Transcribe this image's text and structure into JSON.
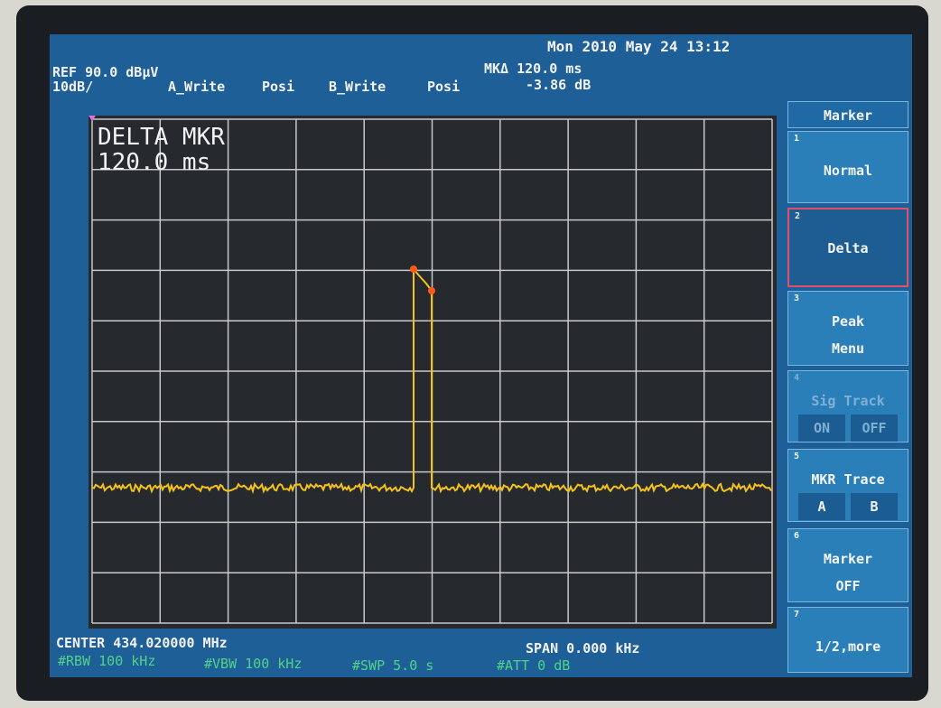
{
  "header": {
    "datetime": "Mon 2010 May 24 13:12",
    "ref": "REF 90.0 dBµV",
    "scale": "10dB/",
    "trace_a": "A_Write",
    "trace_a_mode": "Posi",
    "trace_b": "B_Write",
    "trace_b_mode": "Posi",
    "marker_delta": "MKΔ 120.0 ms",
    "marker_level": "-3.86 dB"
  },
  "display": {
    "marker_title": "DELTA MKR",
    "marker_value": "120.0 ms"
  },
  "footer": {
    "center": "CENTER 434.020000 MHz",
    "span": "SPAN 0.000 kHz",
    "rbw": "#RBW 100 kHz",
    "vbw": "#VBW 100 kHz",
    "swp": "#SWP 5.0 s",
    "att": "#ATT 0 dB"
  },
  "softkeys": {
    "title": "Marker",
    "keys": [
      {
        "number": "1",
        "lines": [
          "Normal"
        ]
      },
      {
        "number": "2",
        "lines": [
          "Delta"
        ]
      },
      {
        "number": "3",
        "lines": [
          "Peak",
          "Menu"
        ]
      },
      {
        "number": "4",
        "lines": [
          "Sig Track"
        ],
        "options": [
          "ON",
          "OFF"
        ]
      },
      {
        "number": "5",
        "lines": [
          "MKR Trace"
        ],
        "options": [
          "A",
          "B"
        ]
      },
      {
        "number": "6",
        "lines": [
          "Marker",
          "OFF"
        ]
      },
      {
        "number": "7",
        "lines": [
          "1/2,more"
        ]
      }
    ]
  }
}
